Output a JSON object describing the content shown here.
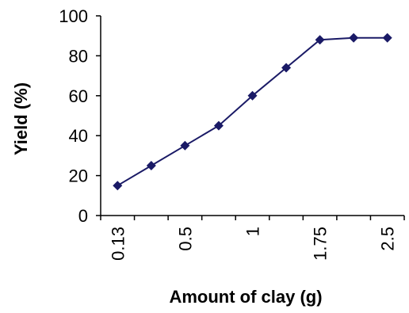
{
  "chart_data": {
    "type": "line",
    "title": "",
    "xlabel": "Amount of clay (g)",
    "ylabel": "Yield (%)",
    "categories": [
      "0.13",
      "",
      "0.5",
      "",
      "1",
      "",
      "1.75",
      "",
      "2.5"
    ],
    "series": [
      {
        "values": [
          15,
          25,
          35,
          45,
          60,
          74,
          88,
          89,
          89
        ]
      }
    ],
    "ylim": [
      0,
      100
    ],
    "yticks": [
      0,
      20,
      40,
      60,
      80,
      100
    ],
    "grid": false,
    "legend": "none",
    "colors": {
      "line": "#1a1a66",
      "marker": "#1a1a66",
      "axis": "#000000"
    }
  }
}
